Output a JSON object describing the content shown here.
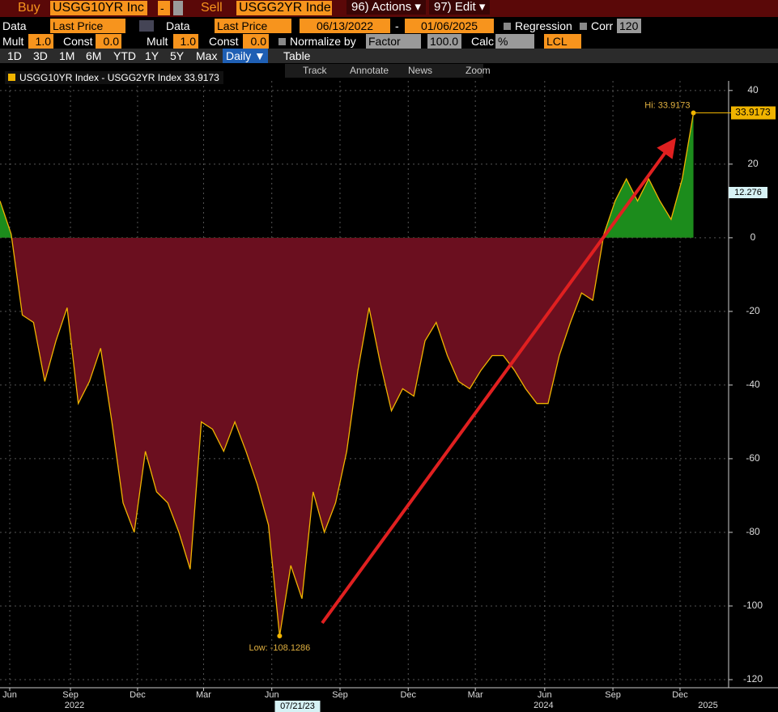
{
  "toolbar": {
    "buy_label": "Buy",
    "buy_security": "USGG10YR Inc",
    "operator": "-",
    "sell_label": "Sell",
    "sell_security": "USGG2YR Inde",
    "actions": "96) Actions ▾",
    "edit": "97) Edit ▾"
  },
  "data_row": {
    "data1_label": "Data",
    "data1_value": "Last Price",
    "data2_label": "Data",
    "data2_value": "Last Price",
    "start_date": "06/13/2022",
    "date_sep": "-",
    "end_date": "01/06/2025",
    "regression": "Regression",
    "corr": "Corr",
    "corr_value": "120"
  },
  "calc_row": {
    "mult1_label": "Mult",
    "mult1_value": "1.0",
    "const1_label": "Const",
    "const1_value": "0.0",
    "mult2_label": "Mult",
    "mult2_value": "1.0",
    "const2_label": "Const",
    "const2_value": "0.0",
    "normalize": "Normalize by",
    "normalize_value": "Factor",
    "factor_value": "100.0",
    "calc": "Calc",
    "calc_value": "%",
    "lcl": "LCL"
  },
  "periods": [
    "1D",
    "3D",
    "1M",
    "6M",
    "YTD",
    "1Y",
    "5Y",
    "Max"
  ],
  "frequency": "Daily ▼",
  "table": "Table",
  "chart_tools": [
    "Track",
    "Annotate",
    "News",
    "Zoom"
  ],
  "chart_data": {
    "type": "area",
    "series": [
      {
        "name": "USGG10YR Index - USGG2YR Index",
        "color": "#f0b400",
        "values": [
          10,
          1,
          -21,
          -23,
          -39,
          -28,
          -19,
          -45,
          -39,
          -30,
          -50,
          -72,
          -80,
          -58,
          -69,
          -72,
          -80,
          -90,
          -50,
          -52,
          -58,
          -50,
          -58,
          -67,
          -78,
          -108.1286,
          -89,
          -98,
          -69,
          -80,
          -72,
          -58,
          -36,
          -19,
          -34,
          -47,
          -41,
          -43,
          -28,
          -23,
          -32,
          -39,
          -41,
          -36,
          -32,
          -32,
          -36,
          -41,
          -45,
          -45,
          -32,
          -23,
          -15,
          -17,
          1,
          10,
          16,
          10,
          16,
          10,
          5,
          16,
          33.9173
        ]
      }
    ],
    "negative_color": "#6b0f1f",
    "positive_color": "#1c8c1c",
    "xlim": [
      0,
      65
    ],
    "ylim": [
      -122.2,
      42.6
    ],
    "yticks": [
      40,
      20,
      0,
      -20,
      -40,
      -60,
      -80,
      -100,
      -120
    ],
    "xticks": [
      {
        "value": 0.87,
        "label": "Jun"
      },
      {
        "value": 6.3,
        "label": "Sep"
      },
      {
        "value": 12.3,
        "label": "Dec"
      },
      {
        "value": 18.2,
        "label": "Mar"
      },
      {
        "value": 24.3,
        "label": "Jun"
      },
      {
        "value": 30.4,
        "label": "Sep"
      },
      {
        "value": 36.5,
        "label": "Dec"
      },
      {
        "value": 42.5,
        "label": "Mar"
      },
      {
        "value": 48.7,
        "label": "Jun"
      },
      {
        "value": 54.8,
        "label": "Sep"
      },
      {
        "value": 60.8,
        "label": "Dec"
      }
    ],
    "year_ticks": [
      {
        "value": 6.66,
        "label": "2022"
      },
      {
        "value": 48.6,
        "label": "2024"
      },
      {
        "value": 63.3,
        "label": "2025"
      }
    ],
    "crosshair_x": {
      "value": 26.6,
      "label": "07/21/23"
    },
    "crosshair_value": 12.276,
    "hi_label": "Hi: 33.9173",
    "low_label": "Low: -108.1286",
    "grid": true
  }
}
